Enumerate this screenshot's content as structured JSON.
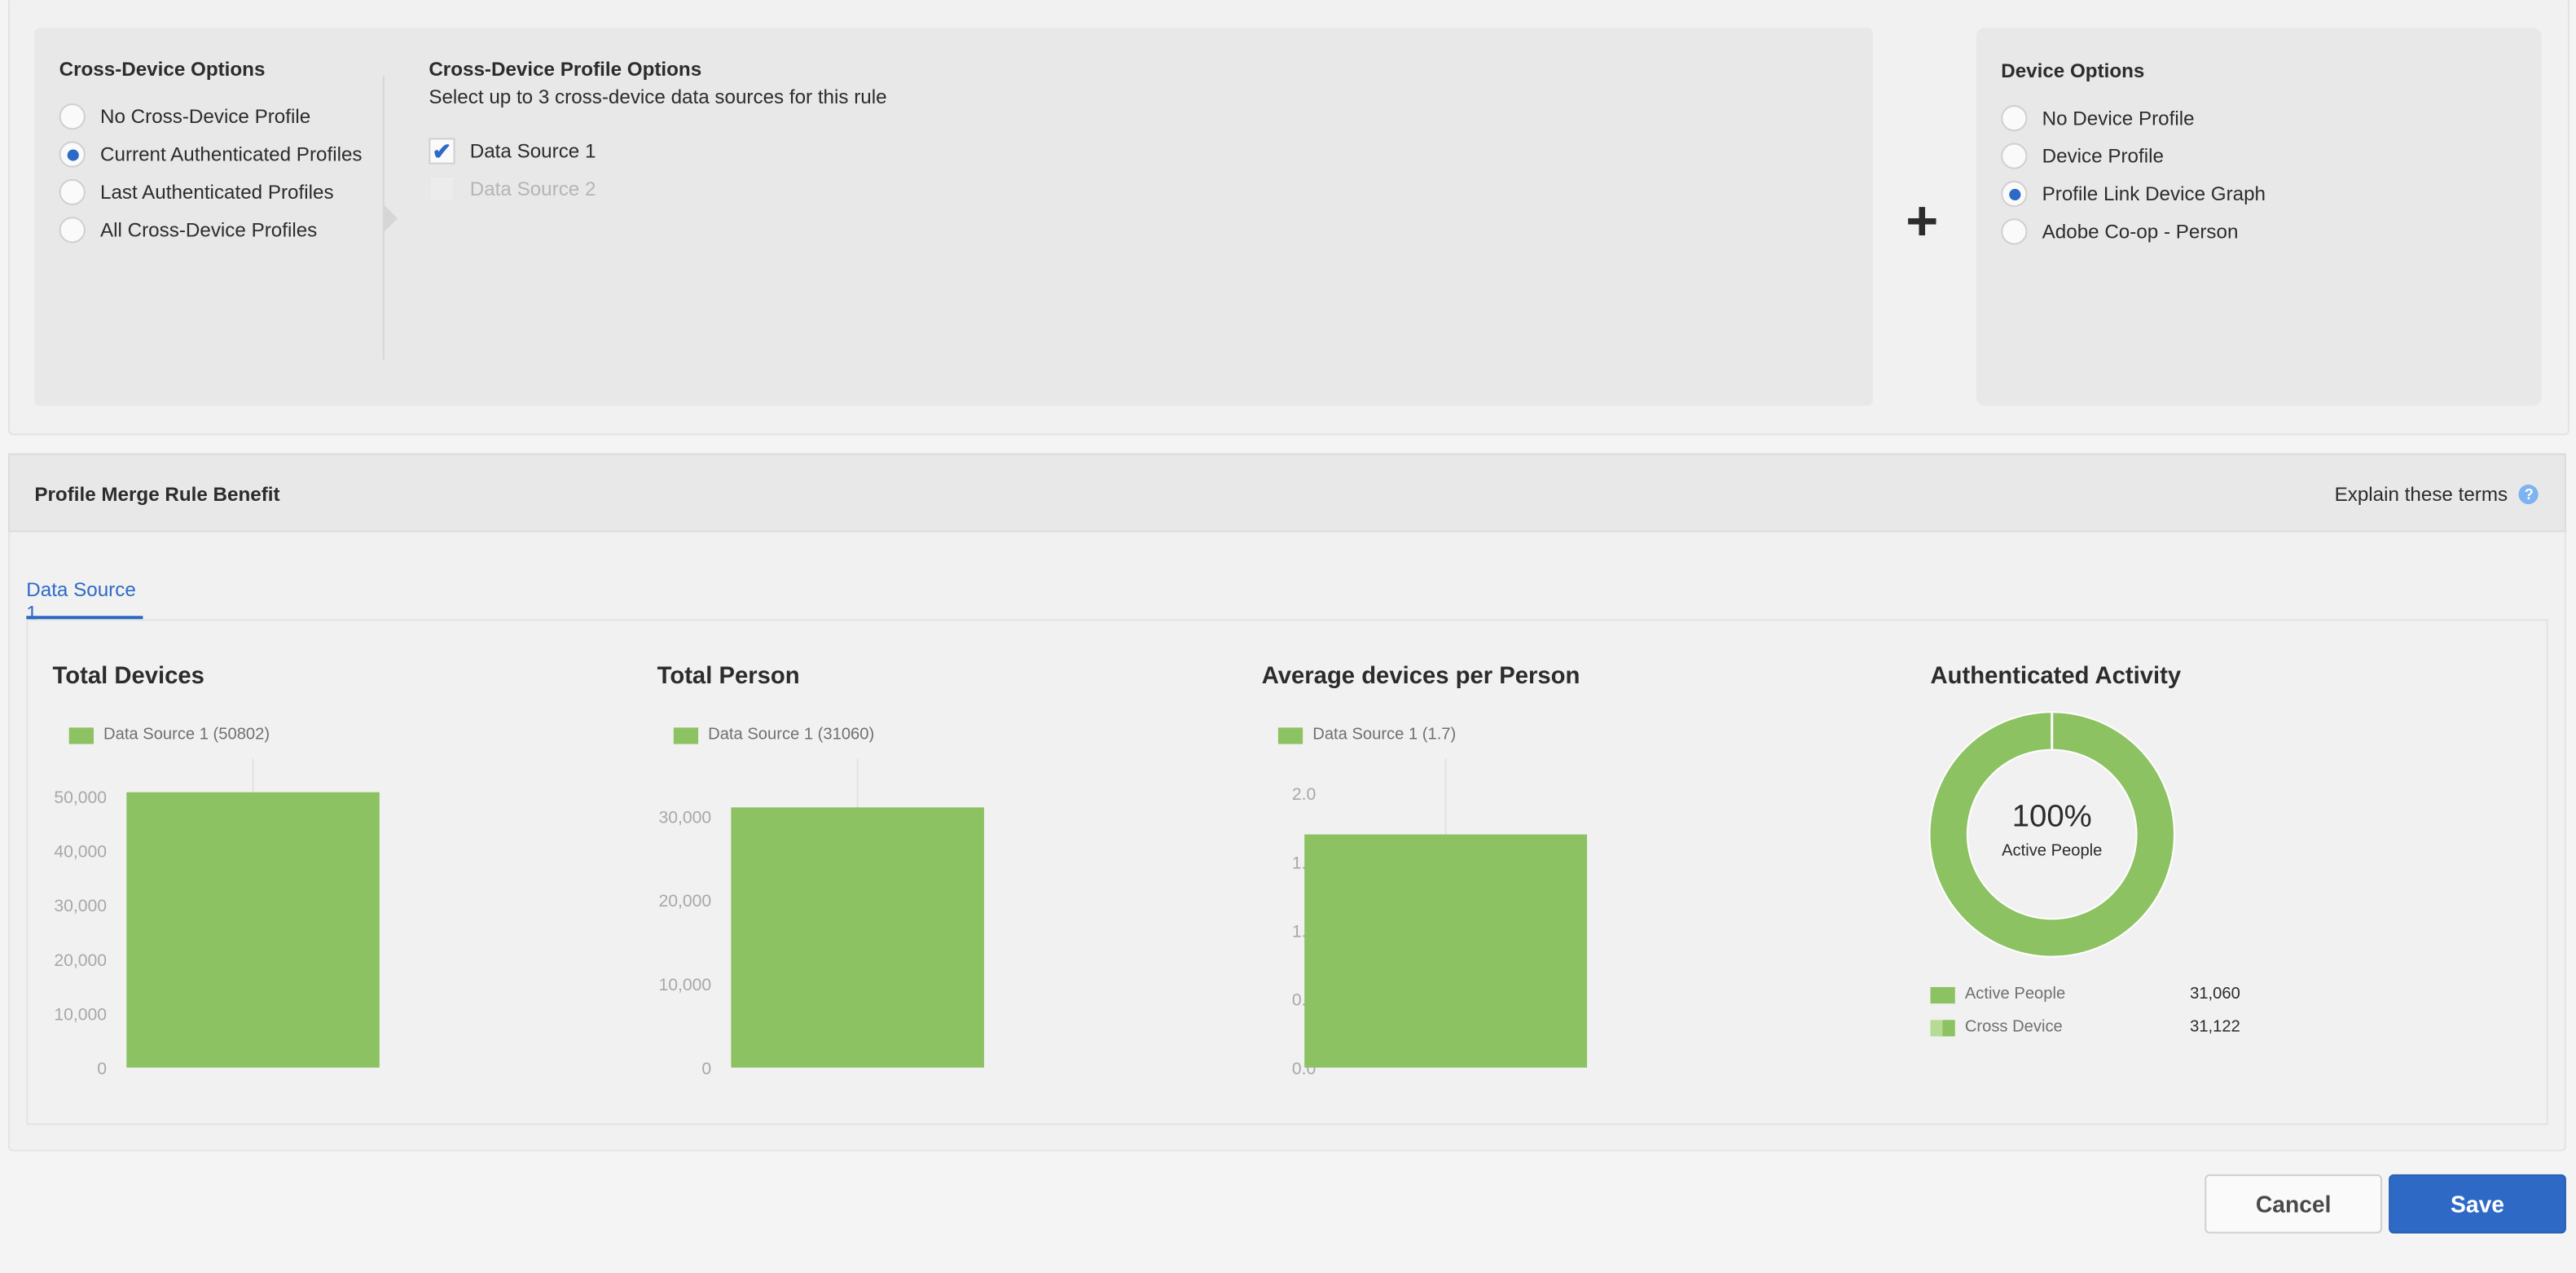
{
  "cross_device_options": {
    "title": "Cross-Device Options",
    "options": [
      {
        "label": "No Cross-Device Profile",
        "selected": false
      },
      {
        "label": "Current Authenticated Profiles",
        "selected": true
      },
      {
        "label": "Last Authenticated Profiles",
        "selected": false
      },
      {
        "label": "All Cross-Device Profiles",
        "selected": false
      }
    ]
  },
  "cross_device_profile_options": {
    "title": "Cross-Device Profile Options",
    "subtitle": "Select up to 3 cross-device data sources for this rule",
    "sources": [
      {
        "label": "Data Source 1",
        "checked": true,
        "disabled": false
      },
      {
        "label": "Data Source 2",
        "checked": false,
        "disabled": true
      }
    ]
  },
  "plus_icon": "plus-icon",
  "device_options": {
    "title": "Device Options",
    "options": [
      {
        "label": "No Device Profile",
        "selected": false
      },
      {
        "label": "Device Profile",
        "selected": false
      },
      {
        "label": "Profile Link Device Graph",
        "selected": true
      },
      {
        "label": "Adobe Co-op - Person",
        "selected": false
      }
    ]
  },
  "benefit": {
    "title": "Profile Merge Rule Benefit",
    "explain_link": "Explain these terms",
    "help_icon": "question-circle-icon",
    "tabs": [
      {
        "label": "Data Source 1",
        "active": true
      }
    ]
  },
  "colors": {
    "accent": "#2d6ac6",
    "bar": "#8cc262",
    "bar_light": "#b5db97"
  },
  "chart_data": [
    {
      "type": "bar",
      "title": "Total Devices",
      "categories": [
        "Data Source 1"
      ],
      "series": [
        {
          "name": "Data Source 1 (50802)",
          "values": [
            50802
          ]
        }
      ],
      "yticks": [
        "0",
        "10,000",
        "20,000",
        "30,000",
        "40,000",
        "50,000"
      ],
      "tick_values": [
        0,
        10000,
        20000,
        30000,
        40000,
        50000
      ],
      "ylim": [
        0,
        50000
      ]
    },
    {
      "type": "bar",
      "title": "Total Person",
      "categories": [
        "Data Source 1"
      ],
      "series": [
        {
          "name": "Data Source 1 (31060)",
          "values": [
            31060
          ]
        }
      ],
      "yticks": [
        "0",
        "10,000",
        "20,000",
        "30,000"
      ],
      "tick_values": [
        0,
        10000,
        20000,
        30000
      ],
      "ylim": [
        0,
        30000
      ]
    },
    {
      "type": "bar",
      "title": "Average devices per Person",
      "categories": [
        "Data Source 1"
      ],
      "series": [
        {
          "name": "Data Source 1 (1.7)",
          "values": [
            1.7
          ]
        }
      ],
      "yticks": [
        "0.0",
        "0.5",
        "1.0",
        "1.5",
        "2.0"
      ],
      "tick_values": [
        0,
        0.5,
        1,
        1.5,
        2
      ],
      "ylim": [
        0,
        2
      ]
    },
    {
      "type": "pie",
      "title": "Authenticated Activity",
      "center_value": "100%",
      "center_label": "Active People",
      "slices": [
        {
          "name": "Active People",
          "value": 31060,
          "display": "31,060"
        },
        {
          "name": "Cross Device",
          "value": 31122,
          "display": "31,122"
        }
      ],
      "percent_active": 100
    }
  ],
  "buttons": {
    "cancel": "Cancel",
    "save": "Save"
  }
}
